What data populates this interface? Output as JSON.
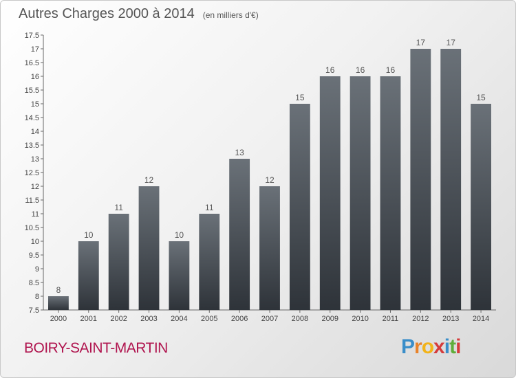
{
  "title": "Autres Charges 2000 à 2014",
  "subtitle": "(en milliers d'€)",
  "place": "BOIRY-SAINT-MARTIN",
  "logo": {
    "letters": [
      "P",
      "r",
      "o",
      "x",
      "i",
      "t",
      "i"
    ],
    "colors": [
      "#3a8ec9",
      "#e8832a",
      "#f2b318",
      "#d53b3b",
      "#3a8ec9",
      "#5fae3b",
      "#d53b3b"
    ]
  },
  "colors": {
    "bar_top": "#6a7178",
    "bar_bottom": "#2e3339",
    "place": "#b0154f"
  },
  "chart_data": {
    "type": "bar",
    "categories": [
      "2000",
      "2001",
      "2002",
      "2003",
      "2004",
      "2005",
      "2006",
      "2007",
      "2008",
      "2009",
      "2010",
      "2011",
      "2012",
      "2013",
      "2014"
    ],
    "values": [
      8,
      10,
      11,
      12,
      10,
      11,
      13,
      12,
      15,
      16,
      16,
      16,
      17,
      17,
      15
    ],
    "title": "Autres Charges 2000 à 2014",
    "subtitle": "(en milliers d'€)",
    "xlabel": "",
    "ylabel": "",
    "ylim": [
      7.5,
      17.5
    ],
    "yticks": [
      7.5,
      8,
      8.5,
      9,
      9.5,
      10,
      10.5,
      11,
      11.5,
      12,
      12.5,
      13,
      13.5,
      14,
      14.5,
      15,
      15.5,
      16,
      16.5,
      17,
      17.5
    ],
    "data_labels": true,
    "grid": false,
    "legend": "none"
  }
}
